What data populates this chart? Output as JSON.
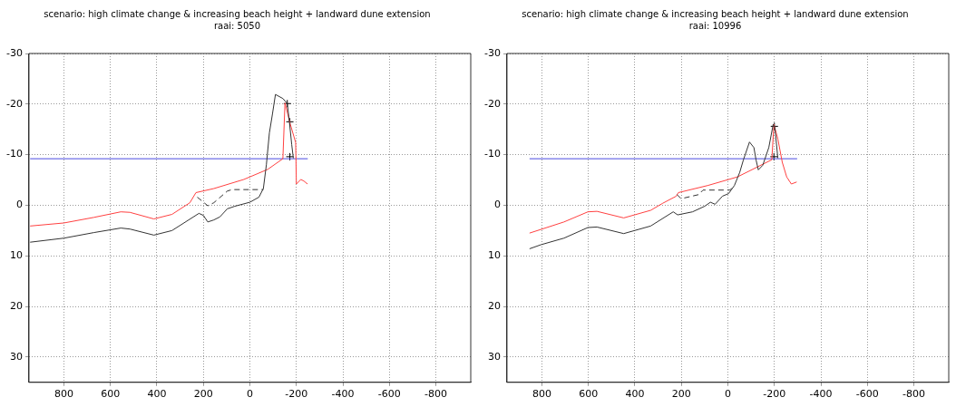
{
  "chart_data": [
    {
      "type": "line",
      "title": "scenario: high climate change & increasing beach height + landward dune extension",
      "subtitle": "raai: 5050",
      "xlim": [
        950,
        -950
      ],
      "ylim": [
        35,
        -30
      ],
      "xticks": [
        800,
        600,
        400,
        200,
        0,
        -200,
        -400,
        -600,
        -800
      ],
      "yticks": [
        -30,
        -20,
        -10,
        0,
        10,
        20,
        30
      ],
      "grid": true,
      "legend": false,
      "series": [
        {
          "color": "#333333",
          "line_style": "solid",
          "x": [
            945,
            800,
            671,
            555,
            516,
            413,
            335,
            219,
            200,
            181,
            155,
            129,
            97,
            65,
            0,
            -39,
            -58,
            -71,
            -84,
            -97,
            -110,
            -142,
            -161,
            -170,
            -180,
            -187
          ],
          "values": [
            7.3,
            6.5,
            5.4,
            4.5,
            4.7,
            5.9,
            5.0,
            1.6,
            2.0,
            3.3,
            2.9,
            2.3,
            0.7,
            0.2,
            -0.6,
            -1.6,
            -3.3,
            -8.0,
            -14.3,
            -18.0,
            -21.9,
            -21.1,
            -20.1,
            -16.5,
            -12,
            -9.3
          ]
        },
        {
          "color": "#333333",
          "line_style": "dashed",
          "x": [
            226,
            181,
            155,
            97,
            77,
            -58
          ],
          "values": [
            -1.6,
            0.1,
            -0.5,
            -2.8,
            -3.1,
            -3.1
          ]
        },
        {
          "color": "#ff4040",
          "line_style": "solid",
          "x": [
            945,
            800,
            671,
            555,
            516,
            413,
            335,
            258,
            232,
            155,
            26,
            -77,
            -142,
            -151,
            -174,
            -197,
            -200,
            -219,
            -232,
            -248
          ],
          "values": [
            4.1,
            3.5,
            2.4,
            1.3,
            1.4,
            2.7,
            1.8,
            -0.5,
            -2.5,
            -3.3,
            -5.1,
            -7.1,
            -9.2,
            -20.2,
            -16.0,
            -12.4,
            -4.2,
            -5.1,
            -4.8,
            -4.2
          ]
        },
        {
          "color": "#4a4ae0",
          "line_style": "solid",
          "x": [
            945,
            -249
          ],
          "values": [
            -9.2,
            -9.2
          ]
        },
        {
          "type": "scatter",
          "color": "#000000",
          "marker": "cross",
          "x": [
            -161,
            -172,
            -172
          ],
          "values": [
            -20.1,
            -16.5,
            -9.6
          ]
        }
      ]
    },
    {
      "type": "line",
      "title": "scenario: high climate change & increasing beach height + landward dune extension",
      "subtitle": "raai: 10996",
      "xlim": [
        950,
        -950
      ],
      "ylim": [
        35,
        -30
      ],
      "xticks": [
        800,
        600,
        400,
        200,
        0,
        -200,
        -400,
        -600,
        -800
      ],
      "yticks": [
        -30,
        -20,
        -10,
        0,
        10,
        20,
        30
      ],
      "grid": true,
      "legend": false,
      "series": [
        {
          "color": "#333333",
          "line_style": "solid",
          "x": [
            853,
            804,
            705,
            602,
            563,
            448,
            332,
            235,
            216,
            152,
            100,
            75,
            55,
            23,
            -3,
            -28,
            -51,
            -67,
            -93,
            -112,
            -121,
            -131,
            -150,
            -176,
            -195,
            -202,
            -215
          ],
          "values": [
            8.6,
            7.8,
            6.5,
            4.4,
            4.3,
            5.6,
            4.1,
            1.3,
            1.9,
            1.3,
            0.2,
            -0.6,
            -0.2,
            -1.8,
            -2.3,
            -3.9,
            -6.5,
            -9.0,
            -12.5,
            -11.4,
            -9.0,
            -7.0,
            -7.9,
            -11.4,
            -16.0,
            -15.4,
            -9.3
          ]
        },
        {
          "color": "#333333",
          "line_style": "dashed",
          "x": [
            219,
            201,
            126,
            107,
            -9,
            -28
          ],
          "values": [
            -2.1,
            -1.3,
            -2.1,
            -3.0,
            -3.0,
            -3.9
          ]
        },
        {
          "color": "#ff4040",
          "line_style": "solid",
          "x": [
            853,
            705,
            602,
            563,
            448,
            332,
            280,
            222,
            213,
            87,
            -41,
            -189,
            -198,
            -215,
            -234,
            -253,
            -273,
            -296
          ],
          "values": [
            5.5,
            3.3,
            1.3,
            1.2,
            2.5,
            1.0,
            -0.4,
            -1.8,
            -2.5,
            -3.9,
            -5.6,
            -9.0,
            -16.0,
            -13.1,
            -8.5,
            -5.6,
            -4.2,
            -4.6
          ]
        },
        {
          "color": "#4a4ae0",
          "line_style": "solid",
          "x": [
            853,
            -298
          ],
          "values": [
            -9.2,
            -9.2
          ]
        },
        {
          "type": "scatter",
          "color": "#000000",
          "marker": "cross",
          "x": [
            -200,
            -198
          ],
          "values": [
            -15.6,
            -9.6
          ]
        }
      ]
    }
  ]
}
